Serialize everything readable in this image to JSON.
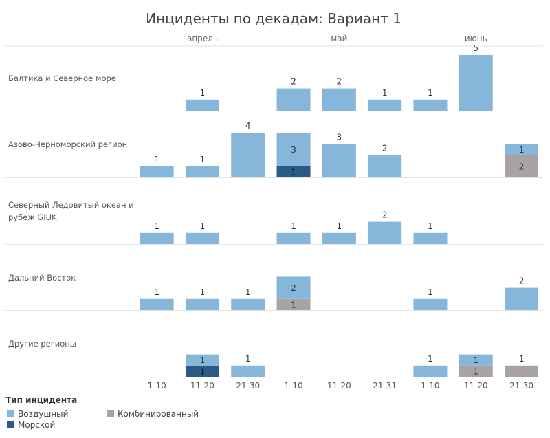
{
  "chart_data": {
    "type": "bar",
    "stacked": true,
    "title": "Инциденты по декадам: Вариант 1",
    "months": [
      "апрель",
      "май",
      "июнь"
    ],
    "categories": [
      "1-10",
      "11-20",
      "21-30",
      "1-10",
      "11-20",
      "21-31",
      "1-10",
      "11-20",
      "21-30"
    ],
    "category_month": [
      0,
      0,
      0,
      1,
      1,
      1,
      2,
      2,
      2
    ],
    "ylim": [
      0,
      5
    ],
    "legend": {
      "title": "Тип инцидента",
      "position": "bottom-left",
      "items": [
        {
          "key": "air",
          "label": "Воздушный",
          "color": "#86b6d9"
        },
        {
          "key": "sea",
          "label": "Морской",
          "color": "#2c5a87"
        },
        {
          "key": "combined",
          "label": "Комбинированный",
          "color": "#a8a2a2"
        }
      ]
    },
    "regions": [
      {
        "name": "Балтика и Северное море",
        "series": {
          "air": [
            0,
            1,
            0,
            2,
            2,
            1,
            1,
            5,
            0
          ],
          "sea": [
            0,
            0,
            0,
            0,
            0,
            0,
            0,
            0,
            0
          ],
          "combined": [
            0,
            0,
            0,
            0,
            0,
            0,
            0,
            0,
            0
          ]
        }
      },
      {
        "name": "Азово-Черноморский регион",
        "series": {
          "air": [
            1,
            1,
            4,
            3,
            3,
            2,
            0,
            0,
            1
          ],
          "sea": [
            0,
            0,
            0,
            1,
            0,
            0,
            0,
            0,
            0
          ],
          "combined": [
            0,
            0,
            0,
            0,
            0,
            0,
            0,
            0,
            2
          ]
        }
      },
      {
        "name": "Северный Ледовитый океан и рубеж GIUK",
        "series": {
          "air": [
            1,
            1,
            0,
            1,
            1,
            2,
            1,
            0,
            0
          ],
          "sea": [
            0,
            0,
            0,
            0,
            0,
            0,
            0,
            0,
            0
          ],
          "combined": [
            0,
            0,
            0,
            0,
            0,
            0,
            0,
            0,
            0
          ]
        }
      },
      {
        "name": "Дальний Восток",
        "series": {
          "air": [
            1,
            1,
            1,
            2,
            0,
            0,
            1,
            0,
            2
          ],
          "sea": [
            0,
            0,
            0,
            0,
            0,
            0,
            0,
            0,
            0
          ],
          "combined": [
            0,
            0,
            0,
            1,
            0,
            0,
            0,
            0,
            0
          ]
        }
      },
      {
        "name": "Другие регионы",
        "series": {
          "air": [
            0,
            1,
            1,
            0,
            0,
            0,
            1,
            1,
            0
          ],
          "sea": [
            0,
            1,
            0,
            0,
            0,
            0,
            0,
            0,
            0
          ],
          "combined": [
            0,
            0,
            0,
            0,
            0,
            0,
            0,
            1,
            1
          ]
        }
      }
    ],
    "grid": false
  }
}
